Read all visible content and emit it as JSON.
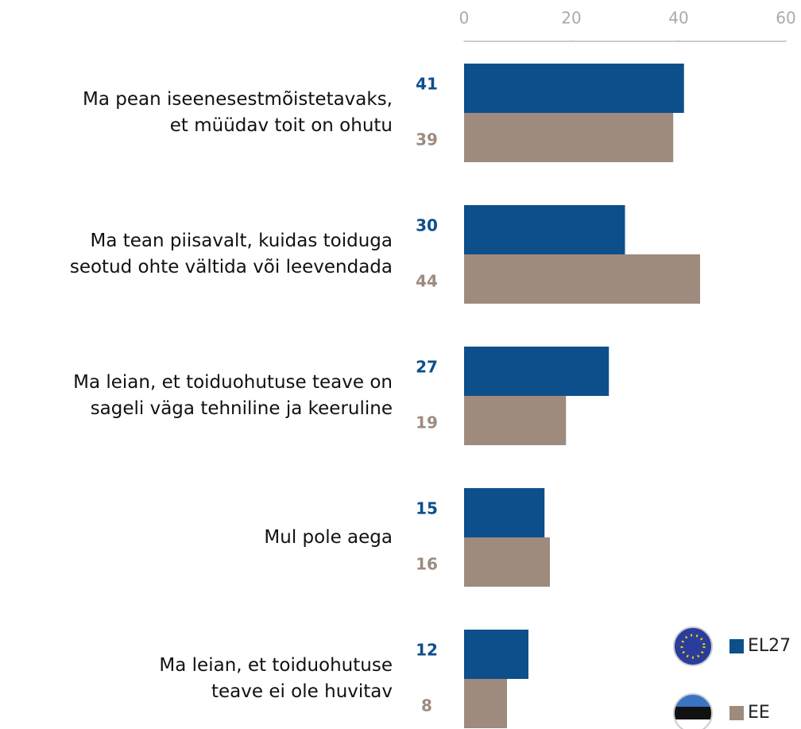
{
  "chart_data": {
    "type": "bar",
    "orientation": "horizontal",
    "categories": [
      "Ma pean iseenesestmõistetavaks,\net müüdav toit on ohutu",
      "Ma tean piisavalt, kuidas toiduga\nseotud ohte vältida või leevendada",
      "Ma leian, et toiduohutuse teave on\nsageli väga tehniline  ja keeruline",
      "Mul pole aega",
      "Ma leian, et toiduohutuse\nteave ei ole huvitav"
    ],
    "series": [
      {
        "name": "EL27",
        "color": "#0d4f8b",
        "values": [
          41,
          30,
          27,
          15,
          12
        ]
      },
      {
        "name": "EE",
        "color": "#9e8b7e",
        "values": [
          39,
          44,
          19,
          16,
          8
        ]
      }
    ],
    "xlim": [
      0,
      60
    ],
    "xticks": [
      0,
      20,
      40,
      60
    ]
  }
}
